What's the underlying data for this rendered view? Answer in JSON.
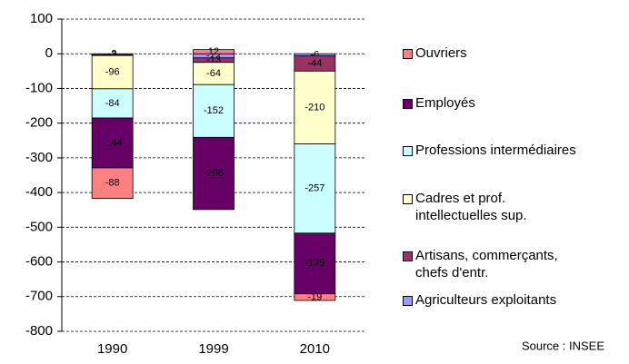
{
  "chart_data": {
    "type": "stacked_bar",
    "categories": [
      "1990",
      "1999",
      "2010"
    ],
    "series": [
      {
        "name": "Agriculteurs exploitants",
        "color": "#9999ff",
        "values": [
          -3,
          -12,
          -6
        ]
      },
      {
        "name": "Artisans, commerçants,\nchefs d'entr.",
        "color": "#993366",
        "values": [
          -2,
          -13,
          -44
        ]
      },
      {
        "name": "Cadres et prof.\nintellectuelles sup.",
        "color": "#ffffcc",
        "values": [
          -96,
          -64,
          -210
        ]
      },
      {
        "name": "Professions intermédiaires",
        "color": "#ccffff",
        "values": [
          -84,
          -152,
          -257
        ]
      },
      {
        "name": "Employés",
        "color": "#660066",
        "values": [
          -144,
          -208,
          -175
        ]
      },
      {
        "name": "Ouvriers",
        "color": "#ff8080",
        "values": [
          -88,
          12,
          -19
        ]
      }
    ],
    "ylim": [
      -800,
      100
    ],
    "yticks": [
      -800,
      -700,
      -600,
      -500,
      -400,
      -300,
      -200,
      -100,
      0,
      100
    ],
    "grid": true,
    "legend": "right",
    "source": "Source : INSEE"
  }
}
